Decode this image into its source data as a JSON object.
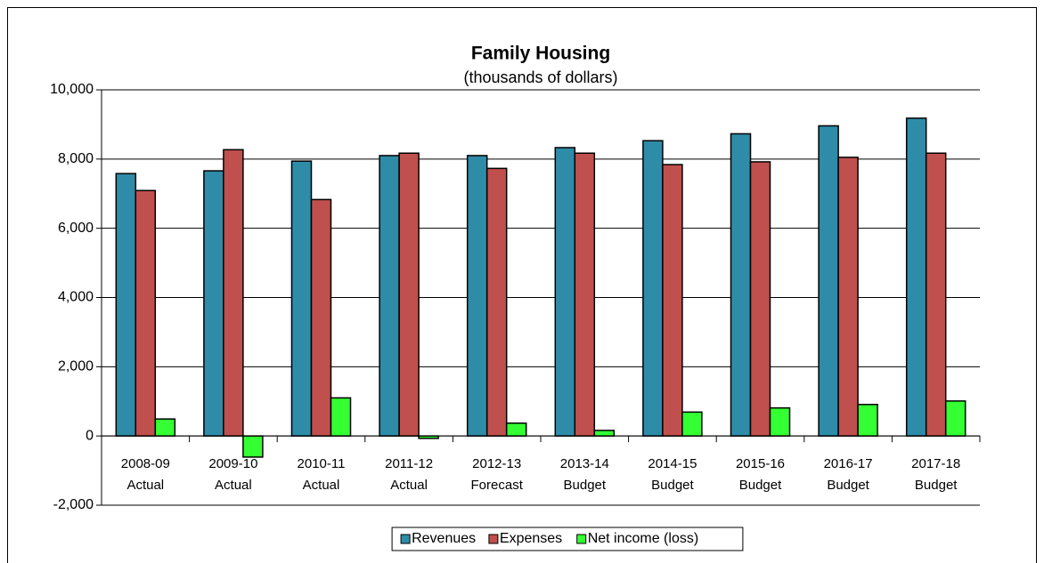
{
  "chart_data": {
    "type": "bar",
    "title": "Family Housing",
    "subtitle": "(thousands of dollars)",
    "categories": [
      "2008-09\nActual",
      "2009-10\nActual",
      "2010-11\nActual",
      "2011-12\nActual",
      "2012-13\nForecast",
      "2013-14\nBudget",
      "2014-15\nBudget",
      "2015-16\nBudget",
      "2016-17\nBudget",
      "2017-18\nBudget"
    ],
    "series": [
      {
        "name": "Revenues",
        "color": "#2e8ca8",
        "values": [
          7580,
          7660,
          7940,
          8100,
          8100,
          8330,
          8530,
          8730,
          8960,
          9180
        ]
      },
      {
        "name": "Expenses",
        "color": "#c0504d",
        "values": [
          7090,
          8270,
          6830,
          8170,
          7730,
          8170,
          7840,
          7920,
          8050,
          8170
        ]
      },
      {
        "name": "Net income (loss)",
        "color": "#33ff33",
        "values": [
          490,
          -610,
          1100,
          -70,
          370,
          160,
          690,
          810,
          910,
          1010
        ]
      }
    ],
    "ylim": [
      -2000,
      10000
    ],
    "yticks": [
      {
        "value": -2000,
        "label": "-2,000"
      },
      0,
      {
        "value": 2000,
        "label": "2,000"
      },
      {
        "value": 4000,
        "label": "4,000"
      },
      {
        "value": 6000,
        "label": "6,000"
      },
      {
        "value": 8000,
        "label": "8,000"
      },
      {
        "value": 10000,
        "label": "10,000"
      }
    ],
    "negative_tick_color": "#ff0000",
    "grid": true,
    "legend": "bottom"
  }
}
